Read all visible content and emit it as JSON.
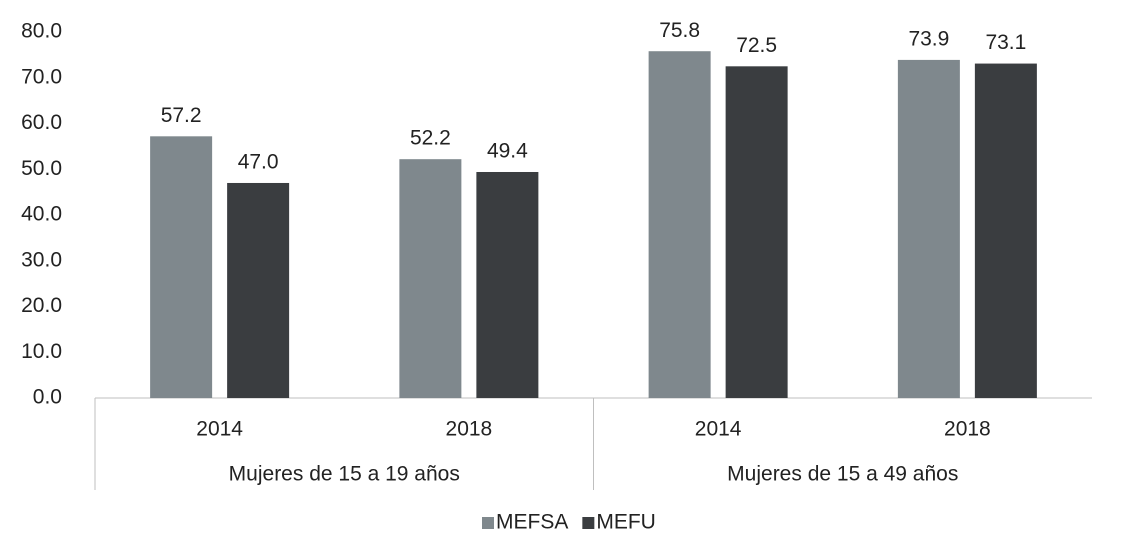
{
  "chart_data": {
    "type": "bar",
    "groups": [
      {
        "name": "Mujeres de 15 a 19 años",
        "categories": [
          "2014",
          "2018"
        ]
      },
      {
        "name": "Mujeres de 15 a 49 años",
        "categories": [
          "2014",
          "2018"
        ]
      }
    ],
    "series": [
      {
        "name": "MEFSA",
        "color": "#7f888d",
        "values": [
          57.2,
          52.2,
          75.8,
          73.9
        ],
        "value_labels": [
          "57.2",
          "52.2",
          "75.8",
          "73.9"
        ]
      },
      {
        "name": "MEFU",
        "color": "#3a3d40",
        "values": [
          47.0,
          49.4,
          72.5,
          73.1
        ],
        "value_labels": [
          "47.0",
          "49.4",
          "72.5",
          "73.1"
        ]
      }
    ],
    "ylim": [
      0,
      80
    ],
    "yticks": [
      {
        "value": 0,
        "label": "0.0"
      },
      {
        "value": 10,
        "label": "10.0"
      },
      {
        "value": 20,
        "label": "20.0"
      },
      {
        "value": 30,
        "label": "30.0"
      },
      {
        "value": 40,
        "label": "40.0"
      },
      {
        "value": 50,
        "label": "50.0"
      },
      {
        "value": 60,
        "label": "60.0"
      },
      {
        "value": 70,
        "label": "70.0"
      },
      {
        "value": 80,
        "label": "80.0"
      }
    ],
    "grid": false,
    "legend": "bottom"
  }
}
